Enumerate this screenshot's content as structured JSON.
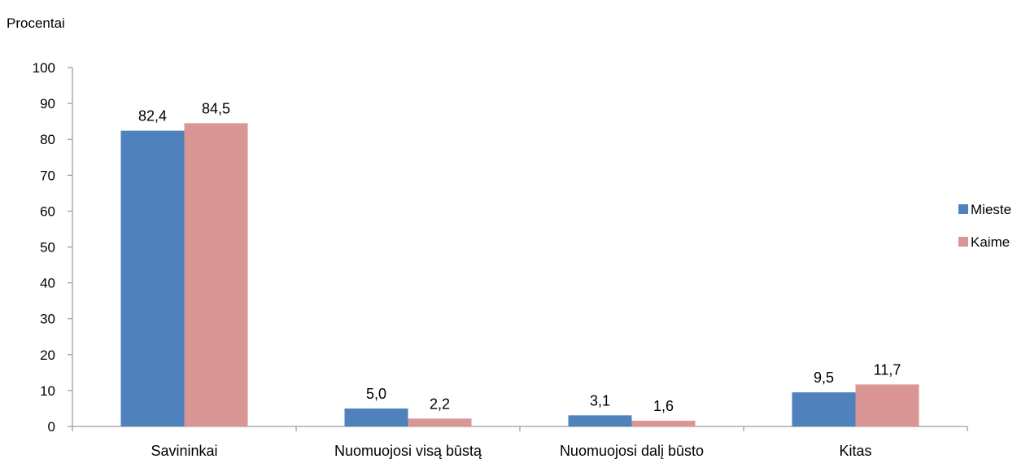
{
  "chart_data": {
    "type": "bar",
    "ylabel": "Procentai",
    "categories": [
      "Savininkai",
      "Nuomuojosi visą būstą",
      "Nuomuojosi dalį būsto",
      "Kitas"
    ],
    "series": [
      {
        "name": "Mieste",
        "values": [
          82.4,
          5.0,
          3.1,
          9.5
        ],
        "labels": [
          "82,4",
          "5,0",
          "3,1",
          "9,5"
        ],
        "color": "#4F81BD"
      },
      {
        "name": "Kaime",
        "values": [
          84.5,
          2.2,
          1.6,
          11.7
        ],
        "labels": [
          "84,5",
          "2,2",
          "1,6",
          "11,7"
        ],
        "color": "#D99694"
      }
    ],
    "ylim": [
      0,
      100
    ],
    "yticks": [
      0,
      10,
      20,
      30,
      40,
      50,
      60,
      70,
      80,
      90,
      100
    ],
    "legend": "right",
    "grid": false
  }
}
